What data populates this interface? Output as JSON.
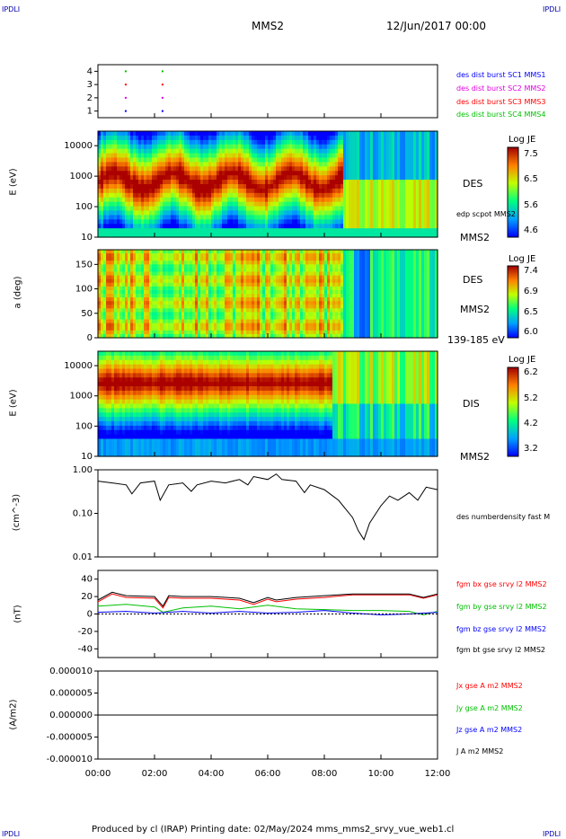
{
  "corners": {
    "tl": "IPDLI",
    "tr": "IPDLI",
    "bl": "IPDLI",
    "br": "IPDLI"
  },
  "header": {
    "spacecraft": "MMS2",
    "date": "12/Jun/2017 00:00"
  },
  "footer": {
    "text": "Produced by cl (IRAP)   Printing date: 02/May/2024   mms_mms2_srvy_vue_web1.cl"
  },
  "colors": {
    "blue": "#0000ff",
    "magenta": "#e000e0",
    "red": "#ff0000",
    "green": "#00c000",
    "black": "#000000"
  },
  "time_axis": {
    "ticks": [
      "00:00",
      "02:00",
      "04:00",
      "06:00",
      "08:00",
      "10:00",
      "12:00"
    ]
  },
  "panels": {
    "burst": {
      "ticks": [
        "4",
        "3",
        "2",
        "1"
      ],
      "legend": [
        "des dist burst SC1 MMS1",
        "des dist burst SC2 MMS2",
        "des dist burst SC3 MMS3",
        "des dist burst SC4 MMS4"
      ]
    },
    "des_energy": {
      "ylabel": "E (eV)",
      "ticks": [
        "10000",
        "1000",
        "100",
        "10"
      ],
      "label": "DES",
      "sublabel": "MMS2",
      "overlay": "edp scpot MMS2",
      "cbar_title": "Log JE",
      "cbar_ticks": [
        "7.5",
        "6.5",
        "5.6",
        "4.6"
      ]
    },
    "des_pitch": {
      "ylabel": "a (deg)",
      "ticks": [
        "150",
        "100",
        "50",
        "0"
      ],
      "label": "DES",
      "sublabel": "MMS2",
      "range": "139-185 eV",
      "cbar_title": "Log JE",
      "cbar_ticks": [
        "7.4",
        "6.9",
        "6.5",
        "6.0"
      ]
    },
    "dis_energy": {
      "ylabel": "E (eV)",
      "ticks": [
        "10000",
        "1000",
        "100",
        "10"
      ],
      "label": "DIS",
      "sublabel": "MMS2",
      "cbar_title": "Log JE",
      "cbar_ticks": [
        "6.2",
        "5.2",
        "4.2",
        "3.2"
      ]
    },
    "density": {
      "ylabel": "(cm^-3)",
      "ticks": [
        "1.00",
        "0.10",
        "0.01"
      ],
      "legend": [
        "des numberdensity fast M"
      ]
    },
    "bfield": {
      "ylabel": "(nT)",
      "ticks": [
        "40",
        "20",
        "0",
        "-20",
        "-40"
      ],
      "legend": [
        "fgm bx gse srvy l2 MMS2",
        "fgm by gse srvy l2 MMS2",
        "fgm bz gse srvy l2 MMS2",
        "fgm bt gse srvy l2 MMS2"
      ]
    },
    "current": {
      "ylabel": "(A/m2)",
      "ticks": [
        "0.000010",
        "0.000005",
        "0.000000",
        "-0.000005",
        "-0.000010"
      ],
      "legend": [
        "Jx gse A m2 MMS2",
        "Jy gse A m2 MMS2",
        "Jz gse A m2 MMS2",
        "J A m2 MMS2"
      ]
    }
  },
  "chart_data": [
    {
      "type": "scatter",
      "title": "des dist burst",
      "x_unit": "hours",
      "ylim": [
        0.5,
        4.5
      ],
      "series": [
        {
          "name": "des dist burst SC1 MMS1",
          "x": [
            0.95,
            2.25
          ],
          "y": [
            1,
            1
          ]
        },
        {
          "name": "des dist burst SC2 MMS2",
          "x": [
            0.95,
            2.25
          ],
          "y": [
            2,
            2
          ]
        },
        {
          "name": "des dist burst SC3 MMS3",
          "x": [
            0.95,
            2.25
          ],
          "y": [
            3,
            3
          ]
        },
        {
          "name": "des dist burst SC4 MMS4",
          "x": [
            0.95,
            2.25
          ],
          "y": [
            4,
            4
          ]
        }
      ]
    },
    {
      "type": "heatmap",
      "title": "DES",
      "ylabel": "E (eV)",
      "ylim": [
        10,
        30000
      ],
      "yscale": "log",
      "xlim": [
        0,
        12
      ],
      "clim": [
        4.6,
        7.5
      ],
      "colorbar": "Log JE",
      "overlay": "edp scpot MMS2"
    },
    {
      "type": "heatmap",
      "title": "DES",
      "ylabel": "a (deg)",
      "ylim": [
        0,
        180
      ],
      "xlim": [
        0,
        12
      ],
      "clim": [
        6.0,
        7.4
      ],
      "colorbar": "Log JE",
      "energy_range": "139-185 eV"
    },
    {
      "type": "heatmap",
      "title": "DIS",
      "ylabel": "E (eV)",
      "ylim": [
        10,
        30000
      ],
      "yscale": "log",
      "xlim": [
        0,
        12
      ],
      "clim": [
        3.2,
        6.2
      ],
      "colorbar": "Log JE"
    },
    {
      "type": "line",
      "ylabel": "(cm^-3)",
      "yscale": "log",
      "ylim": [
        0.01,
        1.0
      ],
      "xlim": [
        0,
        12
      ],
      "series": [
        {
          "name": "des numberdensity fast M",
          "x": [
            0,
            0.5,
            1,
            1.2,
            1.5,
            2,
            2.2,
            2.5,
            3,
            3.3,
            3.5,
            4,
            4.5,
            5,
            5.3,
            5.5,
            6,
            6.3,
            6.5,
            7,
            7.3,
            7.5,
            8,
            8.3,
            8.5,
            9,
            9.2,
            9.4,
            9.6,
            10,
            10.3,
            10.6,
            11,
            11.3,
            11.6,
            12
          ],
          "y": [
            0.55,
            0.5,
            0.45,
            0.28,
            0.5,
            0.55,
            0.2,
            0.45,
            0.5,
            0.32,
            0.45,
            0.55,
            0.5,
            0.6,
            0.45,
            0.7,
            0.6,
            0.8,
            0.6,
            0.55,
            0.3,
            0.45,
            0.35,
            0.25,
            0.2,
            0.08,
            0.04,
            0.025,
            0.06,
            0.15,
            0.25,
            0.2,
            0.3,
            0.2,
            0.4,
            0.35
          ]
        }
      ]
    },
    {
      "type": "line",
      "ylabel": "(nT)",
      "ylim": [
        -50,
        50
      ],
      "xlim": [
        0,
        12
      ],
      "series": [
        {
          "name": "fgm bx gse srvy l2 MMS2",
          "x": [
            0,
            0.5,
            1,
            2,
            2.3,
            2.5,
            3,
            4,
            5,
            5.5,
            6,
            6.3,
            7,
            8,
            9,
            10,
            11,
            11.5,
            12
          ],
          "y": [
            14,
            23,
            19,
            18,
            7,
            19,
            18,
            18,
            16,
            11,
            17,
            14,
            17,
            19,
            22,
            22,
            22,
            18,
            22
          ]
        },
        {
          "name": "fgm by gse srvy l2 MMS2",
          "x": [
            0,
            1,
            2,
            2.3,
            3,
            4,
            5,
            6,
            7,
            8,
            9,
            10,
            11,
            11.5,
            12
          ],
          "y": [
            9,
            11,
            8,
            2,
            7,
            9,
            6,
            10,
            6,
            5,
            4,
            4,
            3,
            -1,
            3
          ]
        },
        {
          "name": "fgm bz gse srvy l2 MMS2",
          "x": [
            0,
            1,
            2,
            3,
            4,
            5,
            6,
            7,
            8,
            9,
            10,
            11,
            12
          ],
          "y": [
            2,
            3,
            1,
            3,
            1,
            3,
            1,
            2,
            4,
            1,
            -1,
            0,
            2
          ]
        },
        {
          "name": "fgm bt gse srvy l2 MMS2",
          "x": [
            0,
            0.5,
            1,
            2,
            2.3,
            2.5,
            3,
            4,
            5,
            5.5,
            6,
            6.3,
            7,
            8,
            9,
            10,
            11,
            11.5,
            12
          ],
          "y": [
            16,
            25,
            21,
            20,
            9,
            21,
            20,
            20,
            18,
            13,
            19,
            16,
            19,
            21,
            23,
            23,
            23,
            19,
            23
          ]
        }
      ]
    },
    {
      "type": "line",
      "ylabel": "(A/m2)",
      "ylim": [
        -1e-05,
        1e-05
      ],
      "xlim": [
        0,
        12
      ],
      "series": [
        {
          "name": "J A m2 MMS2",
          "x": [
            0,
            12
          ],
          "y": [
            0,
            0
          ]
        }
      ]
    }
  ]
}
